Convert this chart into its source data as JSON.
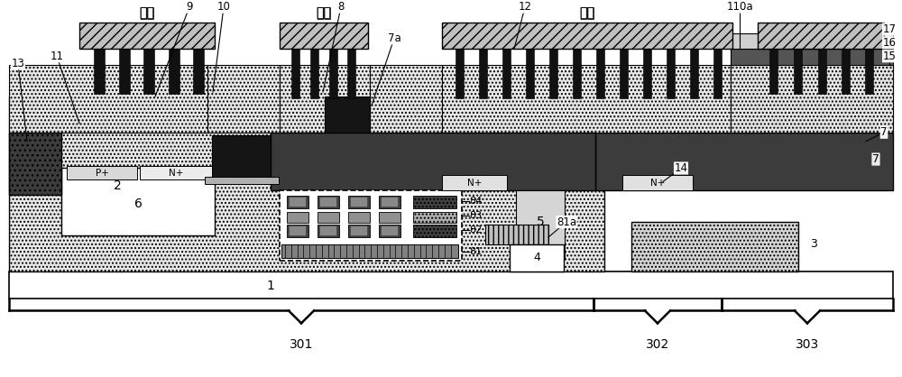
{
  "fig_width": 10.0,
  "fig_height": 4.18,
  "bg_color": "#ffffff",
  "source_label": "源极",
  "gate_label": "栅极",
  "drain_label": "漏极",
  "colors": {
    "dark": "#3c3c3c",
    "black": "#000000",
    "white": "#ffffff",
    "light_dot": "#e0e0e0",
    "p_well_white": "#ffffff",
    "n_plus": "#e8e8e8",
    "p_plus": "#d0d0d0",
    "gate_poly": "#1a1a1a",
    "oxide_gray": "#aaaaaa",
    "metal": "#c0c0c0",
    "coil_dark": "#606060",
    "coil_mid": "#909090",
    "coil_light": "#b8b8b8",
    "region3": "#d0d0d0",
    "region5": "#d8d8d8"
  }
}
